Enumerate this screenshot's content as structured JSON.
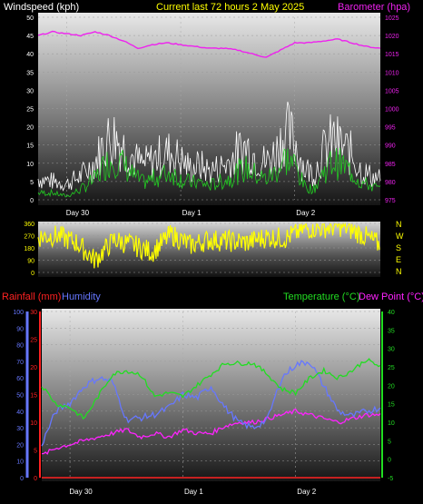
{
  "header": {
    "windspeed_label": "Windspeed (kph)",
    "title": "Current last 72 hours 2 May 2025",
    "barometer_label": "Barometer (hpa)"
  },
  "lower_header": {
    "rainfall_label": "Rainfall (mm)",
    "humidity_label": "Humidity",
    "temperature_label": "Temperature (°C)",
    "dewpoint_label": "Dew Point (°C)"
  },
  "colors": {
    "windspeed": "#ffffff",
    "gust": "#ffffff",
    "wind_avg": "#22cc22",
    "barometer": "#ee22ee",
    "direction": "#ffff00",
    "rainfall": "#ff2222",
    "humidity": "#6677ff",
    "temperature": "#22dd22",
    "dewpoint": "#ff22ff",
    "axis_yellow": "#ffff00"
  },
  "chart_data": [
    {
      "type": "line",
      "name": "wind-barometer",
      "day_labels": [
        "Day 30",
        "Day 1",
        "Day 2"
      ],
      "day_positions_hours": [
        6,
        30,
        54
      ],
      "x_range_hours": [
        0,
        72
      ],
      "left_axis": {
        "label": "Windspeed (kph)",
        "ylim": [
          0,
          50
        ],
        "ticks": [
          0,
          5,
          10,
          15,
          20,
          25,
          30,
          35,
          40,
          45,
          50
        ]
      },
      "right_axis": {
        "label": "Barometer (hpa)",
        "ylim": [
          975,
          1025
        ],
        "ticks": [
          975,
          980,
          985,
          990,
          995,
          1000,
          1005,
          1010,
          1015,
          1020,
          1025
        ]
      },
      "gust_hours": [
        0,
        3,
        6,
        9,
        12,
        14,
        16,
        18,
        20,
        22,
        24,
        26,
        28,
        30,
        32,
        34,
        36,
        38,
        40,
        42,
        44,
        46,
        48,
        50,
        52,
        54,
        56,
        58,
        60,
        62,
        64,
        66,
        68,
        70,
        72
      ],
      "gust_values": [
        8,
        7,
        6,
        9,
        14,
        22,
        24,
        20,
        16,
        13,
        15,
        17,
        18,
        15,
        12,
        13,
        11,
        12,
        14,
        18,
        20,
        16,
        14,
        18,
        26,
        22,
        12,
        10,
        18,
        23,
        20,
        17,
        11,
        9,
        8
      ],
      "wind_avg_values": [
        2,
        2,
        1,
        3,
        6,
        10,
        12,
        10,
        7,
        5,
        6,
        7,
        8,
        6,
        5,
        5,
        4,
        5,
        6,
        8,
        9,
        7,
        6,
        8,
        12,
        10,
        4,
        3,
        8,
        11,
        10,
        8,
        5,
        4,
        3
      ],
      "barometer_hours": [
        0,
        3,
        6,
        9,
        12,
        15,
        18,
        21,
        24,
        27,
        30,
        33,
        36,
        39,
        42,
        45,
        48,
        51,
        54,
        57,
        60,
        63,
        66,
        69,
        72
      ],
      "barometer_values": [
        1020,
        1021,
        1020.5,
        1020,
        1021,
        1020,
        1018.5,
        1016.5,
        1017.5,
        1018,
        1017.5,
        1017,
        1016.5,
        1016.5,
        1016,
        1015,
        1014,
        1016,
        1018,
        1018,
        1018.5,
        1019,
        1018,
        1017,
        1016.5
      ]
    },
    {
      "type": "scatter",
      "name": "wind-direction",
      "y_ticks": [
        0,
        90,
        180,
        270,
        360
      ],
      "ylim": [
        0,
        360
      ],
      "compass_labels": [
        "N",
        "W",
        "S",
        "E",
        "N"
      ],
      "direction_hours": [
        0,
        4,
        8,
        12,
        16,
        20,
        24,
        28,
        32,
        36,
        40,
        44,
        48,
        52,
        56,
        60,
        64,
        68,
        72
      ],
      "direction_values": [
        260,
        270,
        220,
        90,
        240,
        200,
        150,
        280,
        200,
        240,
        230,
        220,
        260,
        250,
        320,
        330,
        340,
        280,
        200
      ]
    },
    {
      "type": "line",
      "name": "temperature-humidity",
      "day_labels": [
        "Day 30",
        "Day 1",
        "Day 2"
      ],
      "day_positions_hours": [
        6,
        30,
        54
      ],
      "x_range_hours": [
        0,
        72
      ],
      "left_outer_axis": {
        "label": "Humidity",
        "ylim": [
          0,
          100
        ],
        "ticks": [
          0,
          10,
          20,
          30,
          40,
          50,
          60,
          70,
          80,
          90,
          100
        ]
      },
      "left_inner_axis": {
        "label": "Rainfall (mm)",
        "ylim": [
          0,
          30
        ],
        "ticks": [
          0,
          5,
          10,
          15,
          20,
          25,
          30
        ]
      },
      "right_axis": {
        "label": "Temperature (°C)",
        "ylim": [
          -5,
          40
        ],
        "ticks": [
          -5,
          0,
          5,
          10,
          15,
          20,
          25,
          30,
          35,
          40
        ]
      },
      "hours": [
        0,
        3,
        6,
        9,
        12,
        15,
        18,
        21,
        24,
        27,
        30,
        33,
        36,
        39,
        42,
        45,
        48,
        51,
        54,
        57,
        60,
        63,
        66,
        69,
        72
      ],
      "humidity": [
        20,
        40,
        45,
        55,
        60,
        58,
        35,
        36,
        38,
        42,
        50,
        48,
        55,
        42,
        33,
        30,
        35,
        60,
        68,
        70,
        55,
        40,
        37,
        40,
        42
      ],
      "temperature": [
        20,
        15,
        14,
        11,
        17,
        23,
        24,
        23,
        17,
        18,
        17,
        20,
        23,
        26,
        26,
        26,
        23,
        19,
        18,
        22,
        24,
        22,
        24,
        27,
        25
      ],
      "dewpoint": [
        1,
        3,
        4,
        5,
        6,
        7,
        8,
        6,
        7,
        6,
        8,
        7,
        7,
        9,
        10,
        10,
        11,
        12,
        13,
        12,
        11,
        10,
        11,
        12,
        12
      ],
      "rainfall": [
        0,
        0,
        0,
        0,
        0,
        0,
        0,
        0,
        0,
        0,
        0,
        0,
        0,
        0,
        0,
        0,
        0,
        0,
        0,
        0,
        0,
        0,
        0,
        0,
        0
      ]
    }
  ]
}
